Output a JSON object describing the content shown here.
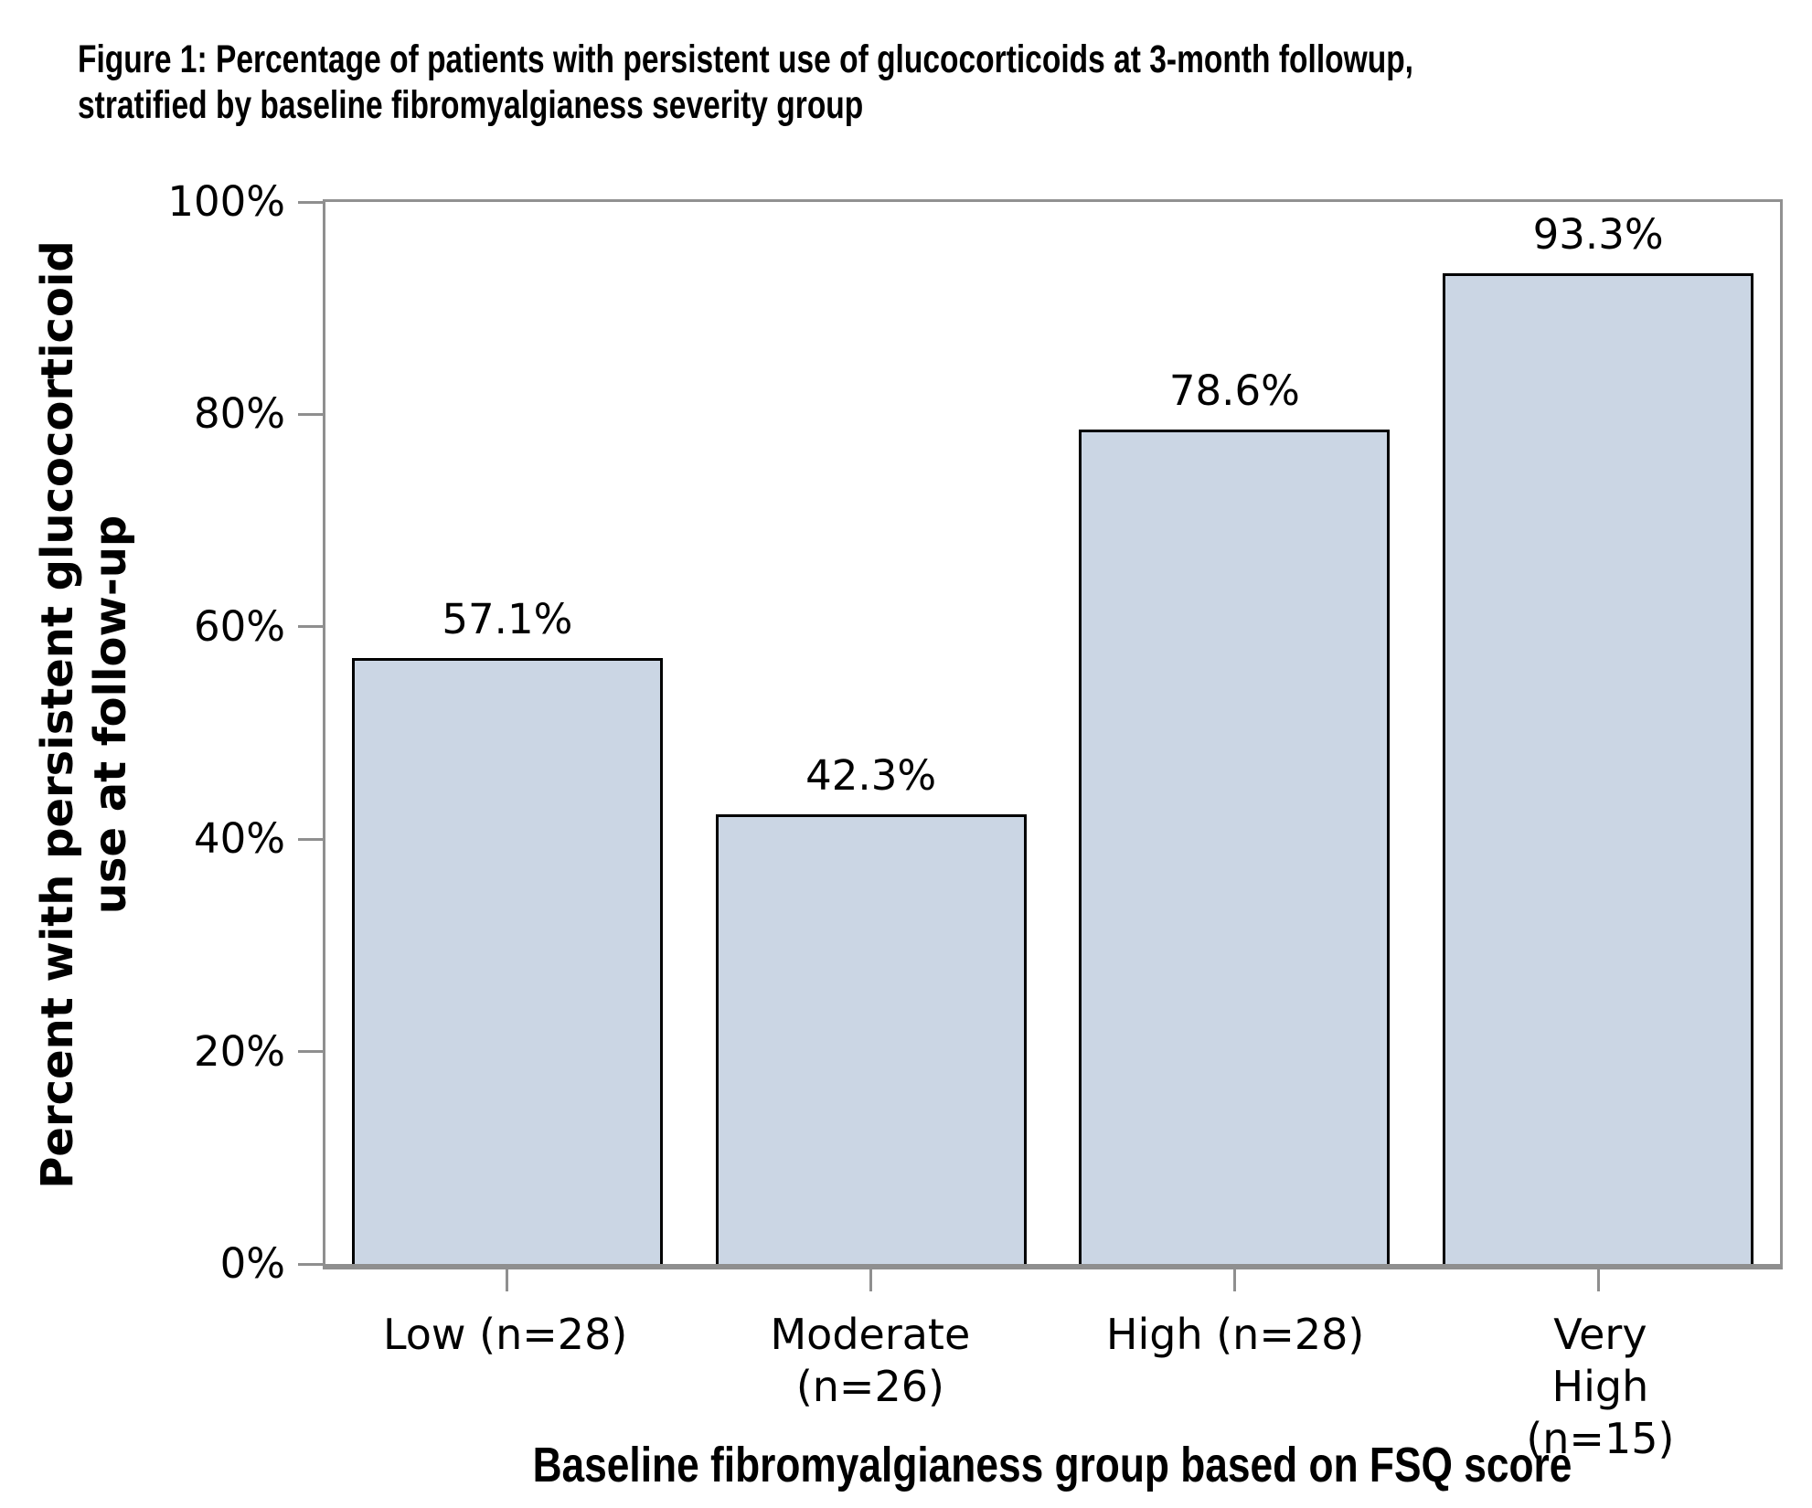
{
  "figure_title": {
    "line1": "Figure 1: Percentage of patients with persistent use of glucocorticoids at 3-month followup,",
    "line2": "stratified by baseline fibromyalgianess severity group"
  },
  "chart_data": {
    "type": "bar",
    "title": "Figure 1: Percentage of patients with persistent use of glucocorticoids at 3-month followup, stratified by baseline fibromyalgianess severity group",
    "categories": [
      "Low (n=28)",
      "Moderate\n(n=26)",
      "High (n=28)",
      "Very High\n(n=15)"
    ],
    "values": [
      57.1,
      42.3,
      78.6,
      93.3
    ],
    "value_labels": [
      "57.1%",
      "42.3%",
      "78.6%",
      "93.3%"
    ],
    "xlabel": "Baseline fibromyalgianess group based on FSQ score",
    "ylabel_lines": [
      "Percent with persistent glucocorticoid",
      "use at follow-up"
    ],
    "ylabel": "Percent with persistent glucocorticoid use at follow-up",
    "ylim": [
      0,
      100
    ],
    "ytick_labels": [
      "0%",
      "20%",
      "40%",
      "60%",
      "80%",
      "100%"
    ],
    "grid": false,
    "legend": false,
    "colors": {
      "bar_fill": "#cbd6e4",
      "bar_border": "#000000",
      "axis": "#8f8f8f",
      "text": "#000000",
      "background": "#ffffff"
    }
  }
}
